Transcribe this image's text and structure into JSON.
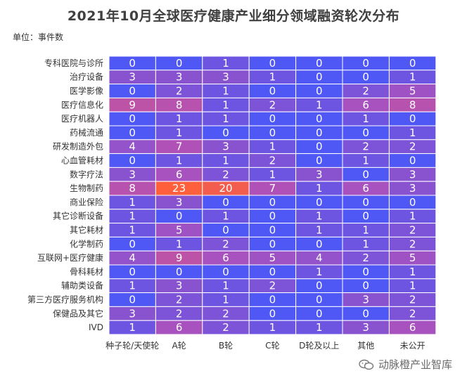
{
  "chart_data": {
    "type": "heatmap",
    "title": "2021年10月全球医疗健康产业细分领域融资轮次分布",
    "unit_label": "单位：事件数",
    "rows": [
      "专科医院与诊所",
      "治疗设备",
      "医学影像",
      "医疗信息化",
      "医疗机器人",
      "药械流通",
      "研发制造外包",
      "心血管耗材",
      "数字疗法",
      "生物制药",
      "商业保险",
      "其它诊断设备",
      "其它耗材",
      "化学制药",
      "互联网+医疗健康",
      "骨科耗材",
      "辅助类设备",
      "第三方医疗服务机构",
      "保健品及其它",
      "IVD"
    ],
    "columns": [
      "种子轮/天使轮",
      "A轮",
      "B轮",
      "C轮",
      "D轮及以上",
      "其他",
      "未公开"
    ],
    "values": [
      [
        0,
        0,
        1,
        0,
        0,
        0,
        0
      ],
      [
        3,
        3,
        3,
        1,
        0,
        0,
        1
      ],
      [
        0,
        2,
        1,
        0,
        0,
        2,
        5
      ],
      [
        9,
        8,
        1,
        2,
        1,
        6,
        8
      ],
      [
        0,
        1,
        1,
        0,
        0,
        1,
        0
      ],
      [
        0,
        1,
        0,
        0,
        0,
        0,
        1
      ],
      [
        4,
        7,
        3,
        1,
        0,
        2,
        2
      ],
      [
        0,
        1,
        1,
        2,
        0,
        1,
        0
      ],
      [
        3,
        6,
        2,
        1,
        3,
        0,
        3
      ],
      [
        8,
        23,
        20,
        7,
        1,
        6,
        3
      ],
      [
        1,
        3,
        0,
        0,
        0,
        0,
        0
      ],
      [
        1,
        0,
        1,
        0,
        1,
        0,
        1
      ],
      [
        1,
        5,
        0,
        0,
        1,
        1,
        2
      ],
      [
        0,
        1,
        2,
        0,
        0,
        1,
        2
      ],
      [
        4,
        9,
        6,
        5,
        4,
        2,
        5
      ],
      [
        0,
        0,
        0,
        0,
        1,
        0,
        1
      ],
      [
        1,
        3,
        1,
        2,
        0,
        0,
        1
      ],
      [
        0,
        2,
        1,
        0,
        0,
        3,
        2
      ],
      [
        3,
        2,
        2,
        0,
        0,
        0,
        2
      ],
      [
        1,
        6,
        2,
        1,
        1,
        3,
        6
      ]
    ],
    "value_range": [
      0,
      23
    ],
    "colors": {
      "low": "#4f57f5",
      "mid": "#b251b7",
      "high": "#ff5f3a",
      "separator": "#ffffff"
    }
  },
  "watermark": {
    "text": "动脉橙产业智库",
    "icon": "wechat-icon"
  }
}
